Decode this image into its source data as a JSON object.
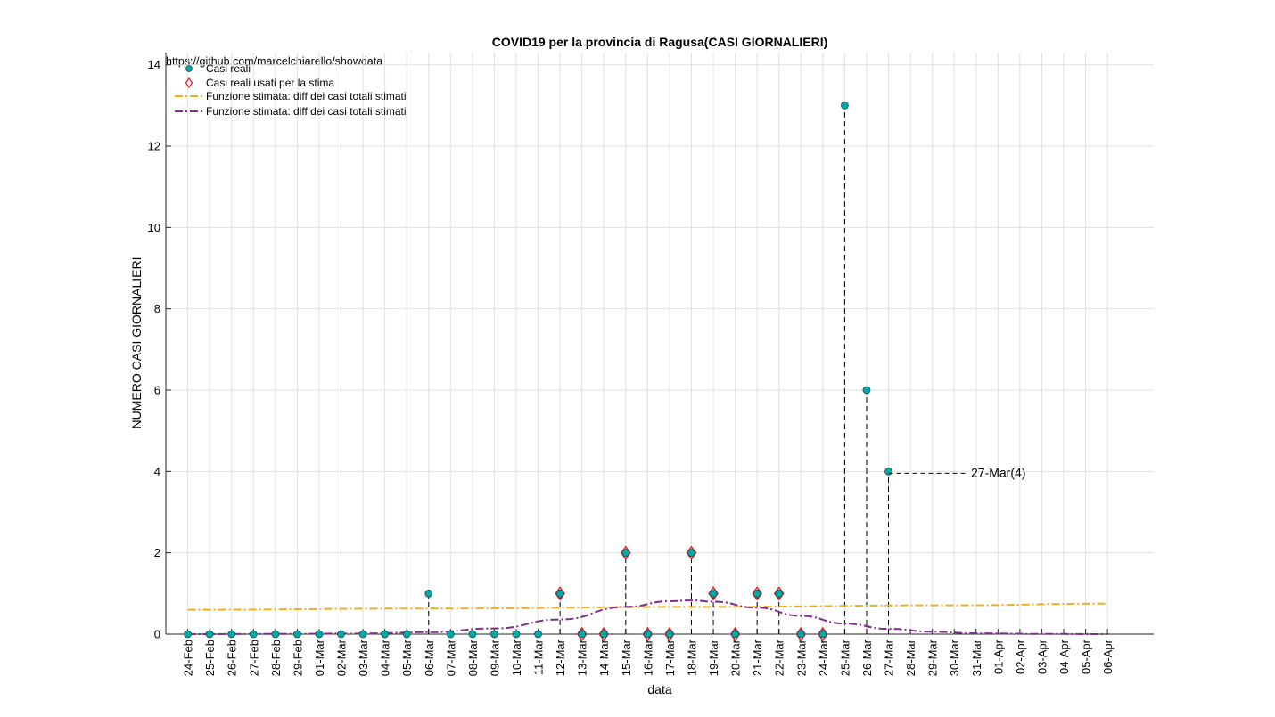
{
  "chart_data": {
    "type": "scatter",
    "title": "COVID19 per la provincia di Ragusa(CASI GIORNALIERI)",
    "source_text": "https://github.com/marcelchiarello/showdata",
    "xlabel": "data",
    "ylabel": "NUMERO CASI GIORNALIERI",
    "ylim": [
      0,
      14.3
    ],
    "yticks": [
      0,
      2,
      4,
      6,
      8,
      10,
      12,
      14
    ],
    "grid": true,
    "legend_placement": "top-left",
    "x_dates": [
      "24-Feb",
      "25-Feb",
      "26-Feb",
      "27-Feb",
      "28-Feb",
      "29-Feb",
      "01-Mar",
      "02-Mar",
      "03-Mar",
      "04-Mar",
      "05-Mar",
      "06-Mar",
      "07-Mar",
      "08-Mar",
      "09-Mar",
      "10-Mar",
      "11-Mar",
      "12-Mar",
      "13-Mar",
      "14-Mar",
      "15-Mar",
      "16-Mar",
      "17-Mar",
      "18-Mar",
      "19-Mar",
      "20-Mar",
      "21-Mar",
      "22-Mar",
      "23-Mar",
      "24-Mar",
      "25-Mar",
      "26-Mar",
      "27-Mar",
      "28-Mar",
      "29-Mar",
      "30-Mar",
      "31-Mar",
      "01-Apr",
      "02-Apr",
      "03-Apr",
      "04-Apr",
      "05-Apr",
      "06-Apr"
    ],
    "series": [
      {
        "name": "Casi reali",
        "color": "#00a8a8",
        "marker": "circle",
        "x": [
          "24-Feb",
          "25-Feb",
          "26-Feb",
          "27-Feb",
          "28-Feb",
          "29-Feb",
          "01-Mar",
          "02-Mar",
          "03-Mar",
          "04-Mar",
          "05-Mar",
          "06-Mar",
          "07-Mar",
          "08-Mar",
          "09-Mar",
          "10-Mar",
          "11-Mar",
          "12-Mar",
          "13-Mar",
          "14-Mar",
          "15-Mar",
          "16-Mar",
          "17-Mar",
          "18-Mar",
          "19-Mar",
          "20-Mar",
          "21-Mar",
          "22-Mar",
          "23-Mar",
          "24-Mar",
          "25-Mar",
          "26-Mar",
          "27-Mar"
        ],
        "values": [
          0,
          0,
          0,
          0,
          0,
          0,
          0,
          0,
          0,
          0,
          0,
          1,
          0,
          0,
          0,
          0,
          0,
          1,
          0,
          0,
          2,
          0,
          0,
          2,
          1,
          0,
          1,
          1,
          0,
          0,
          13,
          6,
          4
        ]
      },
      {
        "name": "Casi reali usati per la stima",
        "color": "#e8211e",
        "marker": "diamond",
        "x": [
          "12-Mar",
          "13-Mar",
          "14-Mar",
          "15-Mar",
          "16-Mar",
          "17-Mar",
          "18-Mar",
          "19-Mar",
          "20-Mar",
          "21-Mar",
          "22-Mar",
          "23-Mar",
          "24-Mar"
        ],
        "values": [
          1,
          0,
          0,
          2,
          0,
          0,
          2,
          1,
          0,
          1,
          1,
          0,
          0
        ]
      },
      {
        "name": "Funzione stimata: diff dei casi totali stimati",
        "color": "#edb120",
        "style": "dash-dot",
        "x": [
          "24-Feb",
          "06-Mar",
          "18-Mar",
          "30-Mar",
          "06-Apr"
        ],
        "values": [
          0.6,
          0.63,
          0.67,
          0.71,
          0.75
        ]
      },
      {
        "name": "Funzione stimata: diff dei casi totali stimati",
        "color": "#7e2f8e",
        "style": "dash-dot",
        "x": [
          "24-Feb",
          "28-Feb",
          "03-Mar",
          "06-Mar",
          "09-Mar",
          "12-Mar",
          "15-Mar",
          "17-Mar",
          "18-Mar",
          "19-Mar",
          "21-Mar",
          "23-Mar",
          "25-Mar",
          "27-Mar",
          "29-Mar",
          "31-Mar",
          "03-Apr",
          "06-Apr"
        ],
        "values": [
          0.0,
          0.005,
          0.015,
          0.05,
          0.14,
          0.36,
          0.67,
          0.81,
          0.83,
          0.8,
          0.65,
          0.45,
          0.26,
          0.13,
          0.06,
          0.02,
          0.005,
          0.0
        ]
      }
    ],
    "annotation": {
      "x": "27-Mar",
      "y": 4,
      "text": "27-Mar(4)"
    }
  }
}
